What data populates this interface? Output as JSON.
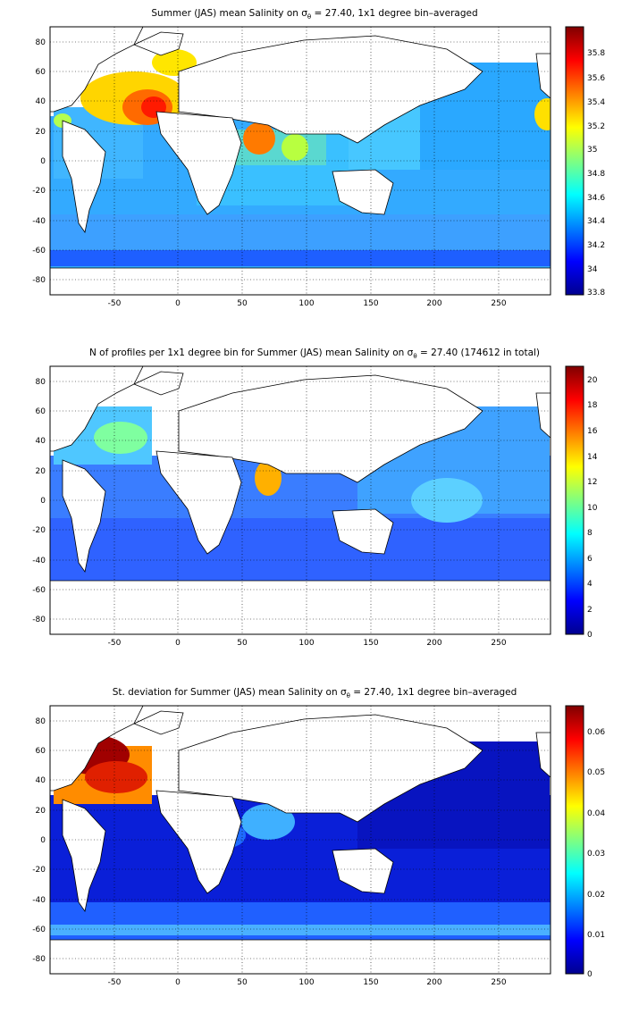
{
  "figure": {
    "x_ticks": [
      "-50",
      "0",
      "50",
      "100",
      "150",
      "200",
      "250"
    ],
    "y_ticks": [
      "80",
      "60",
      "40",
      "20",
      "0",
      "-20",
      "-40",
      "-60",
      "-80"
    ],
    "x_tick_values": [
      -50,
      0,
      50,
      100,
      150,
      200,
      250
    ],
    "y_tick_values": [
      80,
      60,
      40,
      20,
      0,
      -20,
      -40,
      -60,
      -80
    ],
    "xlim": [
      -95,
      295
    ],
    "ylim": [
      -90,
      90
    ],
    "colormap": "jet",
    "jet_colors": [
      "#00008f",
      "#0000ff",
      "#0080ff",
      "#00ffff",
      "#80ff80",
      "#ffff00",
      "#ff8000",
      "#ff0000",
      "#800000"
    ],
    "land_color": "#ffffff",
    "grid": "dotted"
  },
  "panels": [
    {
      "title_pre": "Summer (JAS) mean Salinity on ",
      "title_sigma": "σ",
      "title_sub": "θ",
      "title_post": " = 27.40, 1x1 degree bin–averaged",
      "colorbar_ticks": [
        "35.8",
        "35.6",
        "35.4",
        "35.2",
        "35",
        "34.8",
        "34.6",
        "34.4",
        "34.2",
        "34",
        "33.8"
      ],
      "clim": [
        33.8,
        35.9
      ]
    },
    {
      "title_pre": "N of profiles per 1x1 degree bin for Summer (JAS) mean Salinity on ",
      "title_sigma": "σ",
      "title_sub": "θ",
      "title_post": " = 27.40 (174612 in total)",
      "colorbar_ticks": [
        "20",
        "18",
        "16",
        "14",
        "12",
        "10",
        "8",
        "6",
        "4",
        "2",
        "0"
      ],
      "clim": [
        0,
        21
      ]
    },
    {
      "title_pre": "St. deviation for Summer (JAS) mean Salinity on ",
      "title_sigma": "σ",
      "title_sub": "θ",
      "title_post": " = 27.40, 1x1 degree bin–averaged",
      "colorbar_ticks": [
        "0.06",
        "0.05",
        "0.04",
        "0.03",
        "0.02",
        "0.01",
        "0"
      ],
      "clim": [
        0,
        0.066
      ]
    }
  ]
}
